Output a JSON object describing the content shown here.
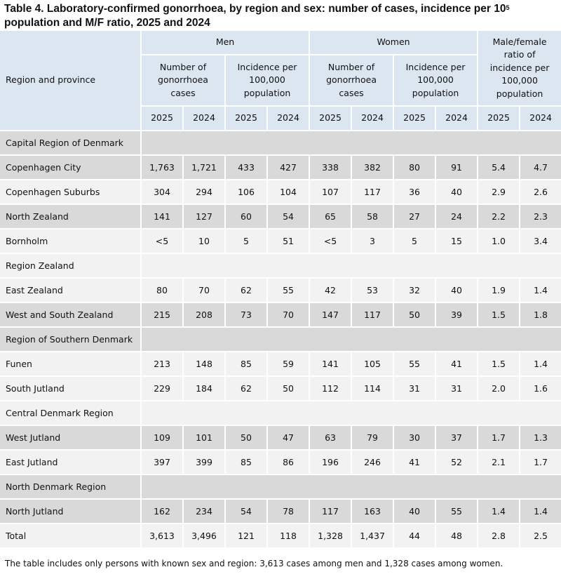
{
  "title_main": "Table 4. Laboratory-confirmed gonorrhoea, by region and sex: number of cases, incidence per 10",
  "title_sup": "5",
  "title_line2": "population and M/F ratio, 2025 and 2024",
  "header": {
    "region_col": "Region and province",
    "men": "Men",
    "women": "Women",
    "number_cases": "Number of gonorrhoea cases",
    "incidence": "Incidence per 100,000 population",
    "ratio": "Male/female ratio of incidence per 100,000 population",
    "years": [
      "2025",
      "2024"
    ]
  },
  "rows": [
    {
      "type": "region",
      "name": "Capital Region of Denmark"
    },
    {
      "type": "data",
      "name": "Copenhagen City",
      "values": [
        "1,763",
        "1,721",
        "433",
        "427",
        "338",
        "382",
        "80",
        "91",
        "5.4",
        "4.7"
      ]
    },
    {
      "type": "data",
      "name": "Copenhagen Suburbs",
      "values": [
        "304",
        "294",
        "106",
        "104",
        "107",
        "117",
        "36",
        "40",
        "2.9",
        "2.6"
      ]
    },
    {
      "type": "data",
      "name": "North Zealand",
      "values": [
        "141",
        "127",
        "60",
        "54",
        "65",
        "58",
        "27",
        "24",
        "2.2",
        "2.3"
      ]
    },
    {
      "type": "data",
      "name": "Bornholm",
      "values": [
        "<5",
        "10",
        "5",
        "51",
        "<5",
        "3",
        "5",
        "15",
        "1.0",
        "3.4"
      ]
    },
    {
      "type": "region",
      "name": "Region Zealand"
    },
    {
      "type": "data",
      "name": "East Zealand",
      "values": [
        "80",
        "70",
        "62",
        "55",
        "42",
        "53",
        "32",
        "40",
        "1.9",
        "1.4"
      ]
    },
    {
      "type": "data",
      "name": "West and South Zealand",
      "values": [
        "215",
        "208",
        "73",
        "70",
        "147",
        "117",
        "50",
        "39",
        "1.5",
        "1.8"
      ]
    },
    {
      "type": "region",
      "name": "Region of Southern Denmark"
    },
    {
      "type": "data",
      "name": "Funen",
      "values": [
        "213",
        "148",
        "85",
        "59",
        "141",
        "105",
        "55",
        "41",
        "1.5",
        "1.4"
      ]
    },
    {
      "type": "data",
      "name": "South Jutland",
      "values": [
        "229",
        "184",
        "62",
        "50",
        "112",
        "114",
        "31",
        "31",
        "2.0",
        "1.6"
      ]
    },
    {
      "type": "region",
      "name": "Central Denmark Region"
    },
    {
      "type": "data",
      "name": "West Jutland",
      "values": [
        "109",
        "101",
        "50",
        "47",
        "63",
        "79",
        "30",
        "37",
        "1.7",
        "1.3"
      ]
    },
    {
      "type": "data",
      "name": "East Jutland",
      "values": [
        "397",
        "399",
        "85",
        "86",
        "196",
        "246",
        "41",
        "52",
        "2.1",
        "1.7"
      ]
    },
    {
      "type": "region",
      "name": "North Denmark Region"
    },
    {
      "type": "data",
      "name": "North Jutland",
      "values": [
        "162",
        "234",
        "54",
        "78",
        "117",
        "163",
        "40",
        "55",
        "1.4",
        "1.4"
      ]
    },
    {
      "type": "data",
      "name": "Total",
      "values": [
        "3,613",
        "3,496",
        "121",
        "118",
        "1,328",
        "1,437",
        "44",
        "48",
        "2.8",
        "2.5"
      ]
    }
  ],
  "footnote": "The table includes only persons with known sex and region: 3,613 cases among men and 1,328 cases among women."
}
